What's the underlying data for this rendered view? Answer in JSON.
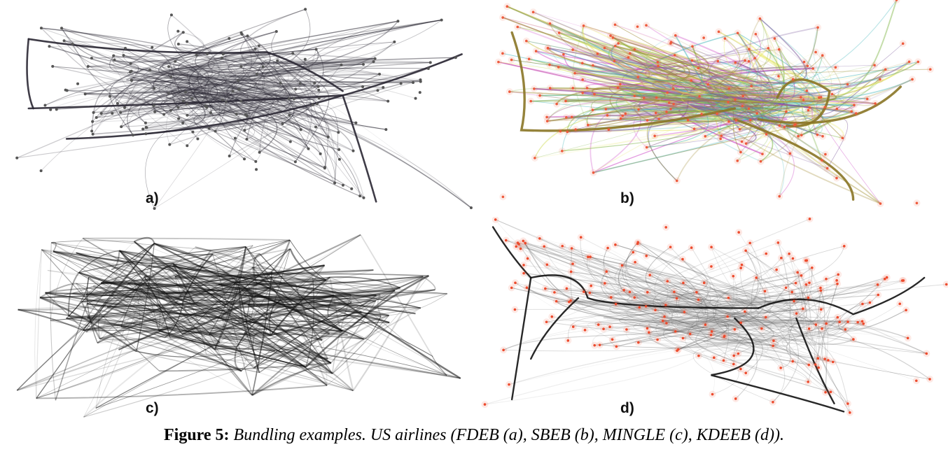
{
  "panels": [
    {
      "label": "a)",
      "style": "fdeb",
      "edge_color": "#2a2733",
      "node_color": "#555555"
    },
    {
      "label": "b)",
      "style": "sbeb",
      "colors": [
        "#7cb342",
        "#9a8428",
        "#c62fbf",
        "#3bb3b8",
        "#e6e65a",
        "#7c5a9c"
      ],
      "node_color": "#ee5a3c"
    },
    {
      "label": "c)",
      "style": "mingle",
      "edge_color": "#111111"
    },
    {
      "label": "d)",
      "style": "kdeeb",
      "edge_color": "#111111",
      "node_color": "#ee4a2c"
    }
  ],
  "caption": {
    "label": "Figure 5:",
    "text": "Bundling examples. US airlines (FDEB (a), SBEB (b), MINGLE (c), KDEEB (d))."
  }
}
